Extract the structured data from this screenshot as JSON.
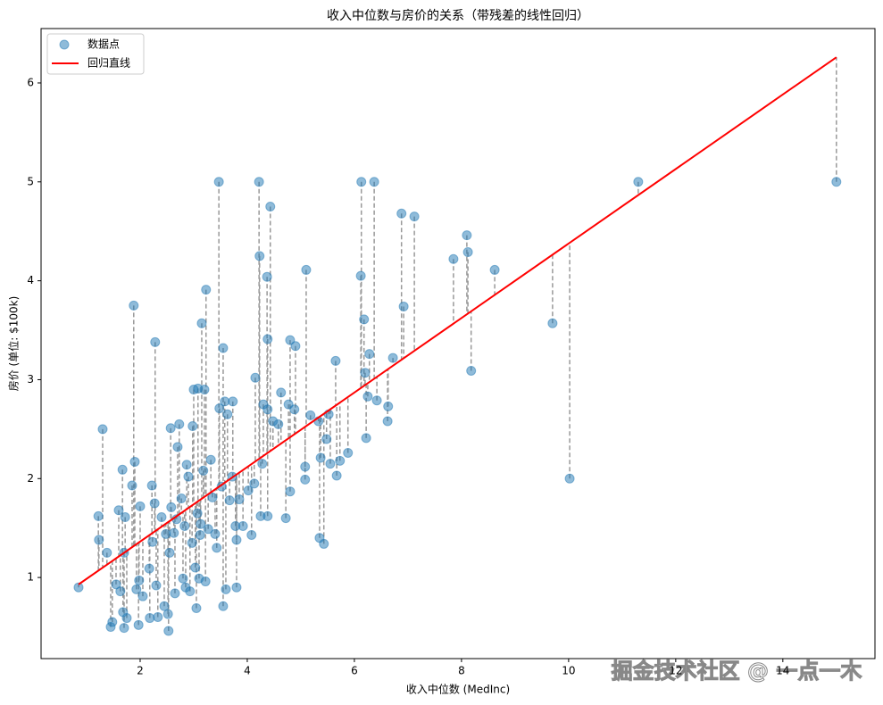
{
  "chart_data": {
    "type": "scatter",
    "title": "收入中位数与房价的关系（带残差的线性回归）",
    "xlabel": "收入中位数 (MedInc)",
    "ylabel": "房价 (单位: $100k)",
    "xlim": [
      0.15,
      15.72
    ],
    "ylim": [
      0.18,
      6.55
    ],
    "xticks": [
      2,
      4,
      6,
      8,
      10,
      12,
      14
    ],
    "yticks": [
      1,
      2,
      3,
      4,
      5,
      6
    ],
    "legend": "upper left",
    "residual_color": "#999999",
    "watermark": "掘金技术社区 @ 一点一木",
    "series": [
      {
        "name": "数据点",
        "color": "#1f77b4",
        "type": "scatter",
        "x": [
          0.85,
          1.22,
          1.23,
          1.3,
          1.38,
          1.45,
          1.48,
          1.55,
          1.6,
          1.63,
          1.67,
          1.68,
          1.7,
          1.7,
          1.72,
          1.75,
          1.85,
          1.88,
          1.9,
          1.93,
          1.97,
          1.98,
          2.0,
          2.05,
          2.17,
          2.18,
          2.22,
          2.23,
          2.27,
          2.28,
          2.3,
          2.33,
          2.4,
          2.45,
          2.48,
          2.52,
          2.53,
          2.55,
          2.57,
          2.58,
          2.63,
          2.65,
          2.68,
          2.7,
          2.73,
          2.77,
          2.8,
          2.83,
          2.85,
          2.87,
          2.9,
          2.93,
          2.97,
          2.98,
          3.0,
          3.03,
          3.05,
          3.07,
          3.08,
          3.1,
          3.12,
          3.13,
          3.15,
          3.18,
          3.2,
          3.22,
          3.23,
          3.27,
          3.32,
          3.35,
          3.4,
          3.43,
          3.47,
          3.48,
          3.52,
          3.55,
          3.55,
          3.58,
          3.6,
          3.63,
          3.67,
          3.72,
          3.73,
          3.78,
          3.8,
          3.8,
          3.85,
          3.92,
          4.02,
          4.08,
          4.13,
          4.15,
          4.22,
          4.23,
          4.25,
          4.28,
          4.3,
          4.37,
          4.38,
          4.38,
          4.38,
          4.43,
          4.48,
          4.58,
          4.63,
          4.72,
          4.77,
          4.8,
          4.8,
          4.88,
          4.9,
          5.08,
          5.08,
          5.1,
          5.18,
          5.33,
          5.35,
          5.37,
          5.43,
          5.48,
          5.52,
          5.55,
          5.65,
          5.67,
          5.73,
          5.88,
          6.12,
          6.13,
          6.18,
          6.2,
          6.22,
          6.25,
          6.28,
          6.37,
          6.42,
          6.62,
          6.63,
          6.72,
          6.88,
          6.92,
          7.12,
          7.85,
          8.1,
          8.12,
          8.18,
          8.62,
          9.7,
          10.02,
          11.3,
          15.0
        ],
        "values": [
          0.9,
          1.62,
          1.38,
          2.5,
          1.25,
          0.5,
          0.55,
          0.93,
          1.68,
          0.86,
          2.09,
          0.65,
          0.49,
          1.25,
          1.61,
          0.59,
          1.93,
          3.75,
          2.17,
          0.88,
          0.52,
          0.97,
          1.72,
          0.81,
          1.09,
          0.59,
          1.93,
          1.36,
          1.75,
          3.38,
          0.92,
          0.6,
          1.61,
          0.71,
          1.44,
          0.63,
          0.46,
          1.25,
          2.51,
          1.71,
          1.45,
          0.84,
          1.59,
          2.32,
          2.55,
          1.8,
          0.99,
          1.52,
          0.9,
          2.14,
          2.02,
          0.86,
          1.35,
          2.53,
          2.9,
          1.1,
          0.69,
          1.65,
          2.91,
          0.99,
          1.43,
          1.54,
          3.57,
          2.08,
          2.9,
          0.96,
          3.91,
          1.49,
          2.19,
          1.81,
          1.44,
          1.3,
          5.0,
          2.71,
          1.92,
          0.71,
          3.32,
          2.78,
          0.88,
          2.65,
          1.78,
          2.02,
          2.78,
          1.52,
          1.38,
          0.9,
          1.79,
          1.52,
          1.88,
          1.43,
          1.95,
          3.02,
          5.0,
          4.25,
          1.62,
          2.15,
          2.75,
          4.04,
          3.41,
          2.7,
          1.62,
          4.75,
          2.58,
          2.55,
          2.87,
          1.6,
          2.75,
          3.4,
          1.87,
          2.7,
          3.34,
          1.99,
          2.12,
          4.11,
          2.64,
          2.58,
          1.4,
          2.21,
          1.34,
          2.4,
          2.65,
          2.15,
          3.19,
          2.03,
          2.18,
          2.26,
          4.05,
          5.0,
          3.61,
          3.07,
          2.41,
          2.83,
          3.26,
          5.0,
          2.79,
          2.58,
          2.73,
          3.22,
          4.68,
          3.74,
          4.65,
          4.22,
          4.46,
          4.29,
          3.09,
          4.11,
          3.57,
          2.0,
          5.0,
          5.0
        ]
      },
      {
        "name": "回归直线",
        "color": "#ff0000",
        "type": "line",
        "x": [
          0.85,
          15.0
        ],
        "values": [
          0.93,
          6.26
        ]
      }
    ]
  }
}
